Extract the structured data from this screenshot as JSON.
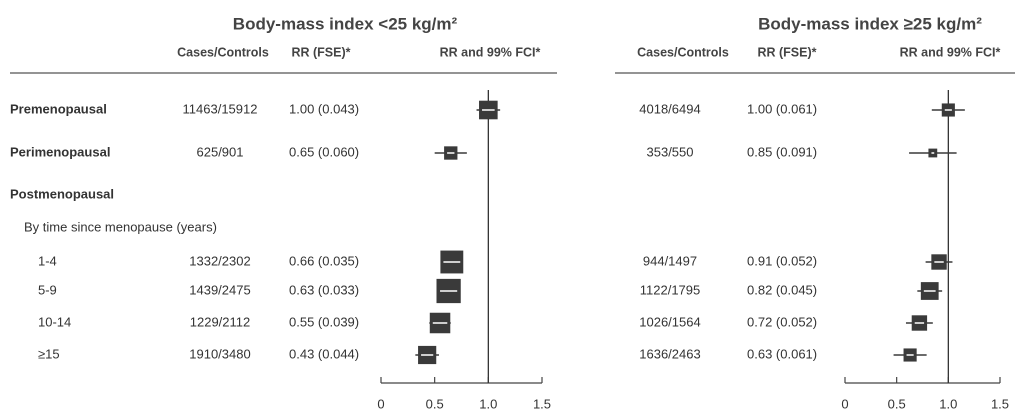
{
  "chart_data": [
    {
      "type": "forest",
      "title": "Body-mass index <25 kg/m²",
      "columns": [
        "Cases/Controls",
        "RR (FSE)*",
        "RR and 99% FCI*"
      ],
      "categories": [
        "Premenopausal",
        "Perimenopausal",
        "Postmenopausal",
        "By time since menopause (years)",
        "1-4",
        "5-9",
        "10-14",
        "≥15"
      ],
      "cases_controls": [
        "11463/15912",
        "625/901",
        null,
        null,
        "1332/2302",
        "1439/2475",
        "1229/2112",
        "1910/3480"
      ],
      "values": [
        1.0,
        0.65,
        null,
        null,
        0.66,
        0.63,
        0.55,
        0.43
      ],
      "fse": [
        0.043,
        0.06,
        null,
        null,
        0.035,
        0.033,
        0.039,
        0.044
      ],
      "value_labels": [
        "1.00 (0.043)",
        "0.65 (0.060)",
        null,
        null,
        "0.66 (0.035)",
        "0.63 (0.033)",
        "0.55 (0.039)",
        "0.43 (0.044)"
      ],
      "ci_low": [
        0.89,
        0.5,
        null,
        null,
        0.57,
        0.55,
        0.45,
        0.32
      ],
      "ci_high": [
        1.11,
        0.8,
        null,
        null,
        0.75,
        0.71,
        0.65,
        0.54
      ],
      "xlim": [
        0,
        1.5
      ],
      "xticks": [
        0,
        0.5,
        {
          "value": 1,
          "label": "1.0"
        },
        1.5
      ],
      "reference_line": 1,
      "color": "#3a3a3a"
    },
    {
      "type": "forest",
      "title": "Body-mass index ≥25 kg/m²",
      "columns": [
        "Cases/Controls",
        "RR (FSE)*",
        "RR and 99% FCI*"
      ],
      "cases_controls": [
        "4018/6494",
        "353/550",
        null,
        null,
        "944/1497",
        "1122/1795",
        "1026/1564",
        "1636/2463"
      ],
      "values": [
        1.0,
        0.85,
        null,
        null,
        0.91,
        0.82,
        0.72,
        0.63
      ],
      "fse": [
        0.061,
        0.091,
        null,
        null,
        0.052,
        0.045,
        0.052,
        0.061
      ],
      "value_labels": [
        "1.00 (0.061)",
        "0.85 (0.091)",
        null,
        null,
        "0.91 (0.052)",
        "0.82 (0.045)",
        "0.72 (0.052)",
        "0.63 (0.061)"
      ],
      "ci_low": [
        0.84,
        0.62,
        null,
        null,
        0.78,
        0.7,
        0.59,
        0.47
      ],
      "ci_high": [
        1.16,
        1.08,
        null,
        null,
        1.04,
        0.94,
        0.85,
        0.79
      ],
      "xlim": [
        0,
        1.5
      ],
      "xticks": [
        0,
        0.5,
        {
          "value": 1,
          "label": "1.0"
        },
        1.5
      ],
      "reference_line": 1,
      "color": "#3a3a3a"
    }
  ]
}
